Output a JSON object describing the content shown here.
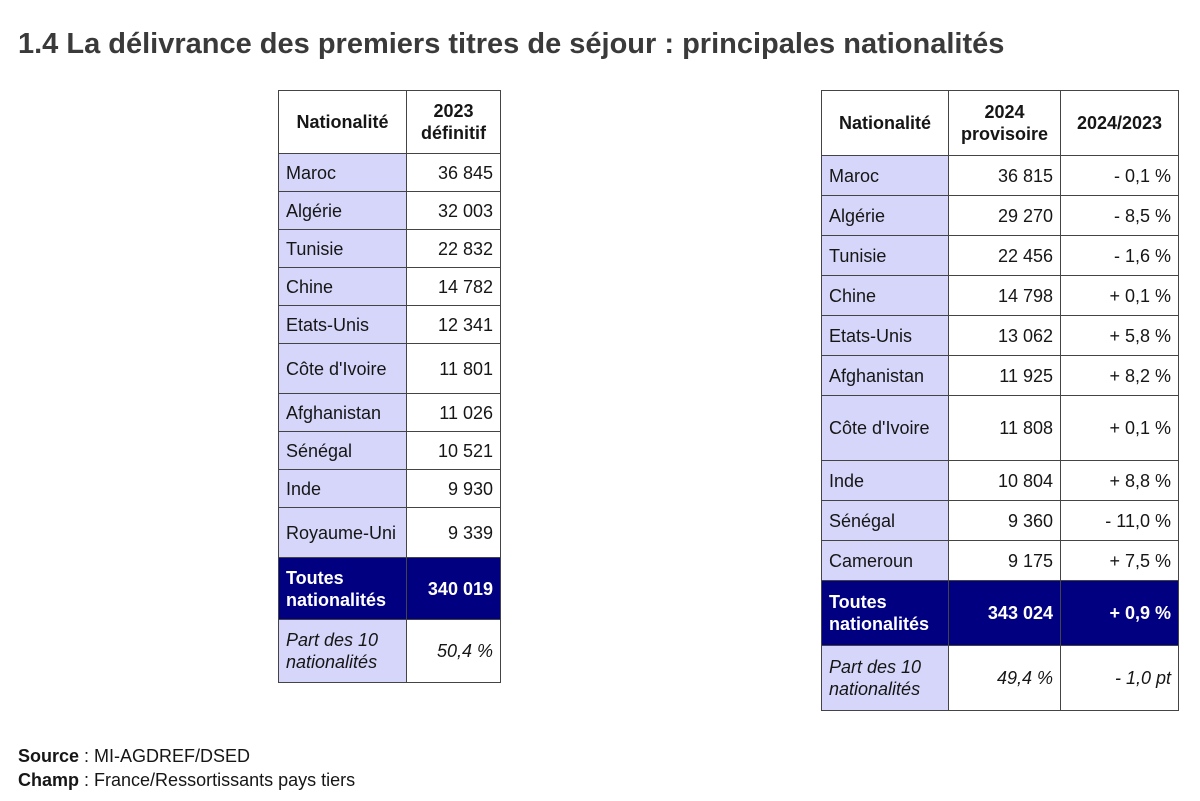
{
  "title": "1.4 La délivrance des premiers titres de séjour : principales nationalités",
  "tables": [
    {
      "header": [
        "Nationalité",
        "2023 définitif"
      ],
      "rows": [
        [
          "Maroc",
          "36 845"
        ],
        [
          "Algérie",
          "32 003"
        ],
        [
          "Tunisie",
          "22 832"
        ],
        [
          "Chine",
          "14 782"
        ],
        [
          "Etats-Unis",
          "12 341"
        ],
        [
          "Côte d'Ivoire",
          "11 801"
        ],
        [
          "Afghanistan",
          "11 026"
        ],
        [
          "Sénégal",
          "10 521"
        ],
        [
          "Inde",
          "9 930"
        ],
        [
          "Royaume-Uni",
          "9 339"
        ]
      ],
      "total": [
        "Toutes nationalités",
        "340 019"
      ],
      "share": [
        "Part des 10 nationalités",
        "50,4 %"
      ]
    },
    {
      "header": [
        "Nationalité",
        "2024 provisoire",
        "2024/2023"
      ],
      "rows": [
        [
          "Maroc",
          "36 815",
          "- 0,1 %"
        ],
        [
          "Algérie",
          "29 270",
          "- 8,5 %"
        ],
        [
          "Tunisie",
          "22 456",
          "- 1,6 %"
        ],
        [
          "Chine",
          "14 798",
          "+ 0,1 %"
        ],
        [
          "Etats-Unis",
          "13 062",
          "+ 5,8 %"
        ],
        [
          "Afghanistan",
          "11 925",
          "+ 8,2 %"
        ],
        [
          "Côte d'Ivoire",
          "11 808",
          "+ 0,1 %"
        ],
        [
          "Inde",
          "10 804",
          "+ 8,8 %"
        ],
        [
          "Sénégal",
          "9 360",
          "- 11,0 %"
        ],
        [
          "Cameroun",
          "9 175",
          "+ 7,5 %"
        ]
      ],
      "total": [
        "Toutes nationalités",
        "343 024",
        "+ 0,9 %"
      ],
      "share": [
        "Part des 10 nationalités",
        "49,4 %",
        "- 1,0 pt"
      ]
    }
  ],
  "notes": [
    {
      "label": "Source",
      "text": ": MI-AGDREF/DSED"
    },
    {
      "label": "Champ",
      "text": ": France/Ressortissants pays tiers"
    }
  ]
}
